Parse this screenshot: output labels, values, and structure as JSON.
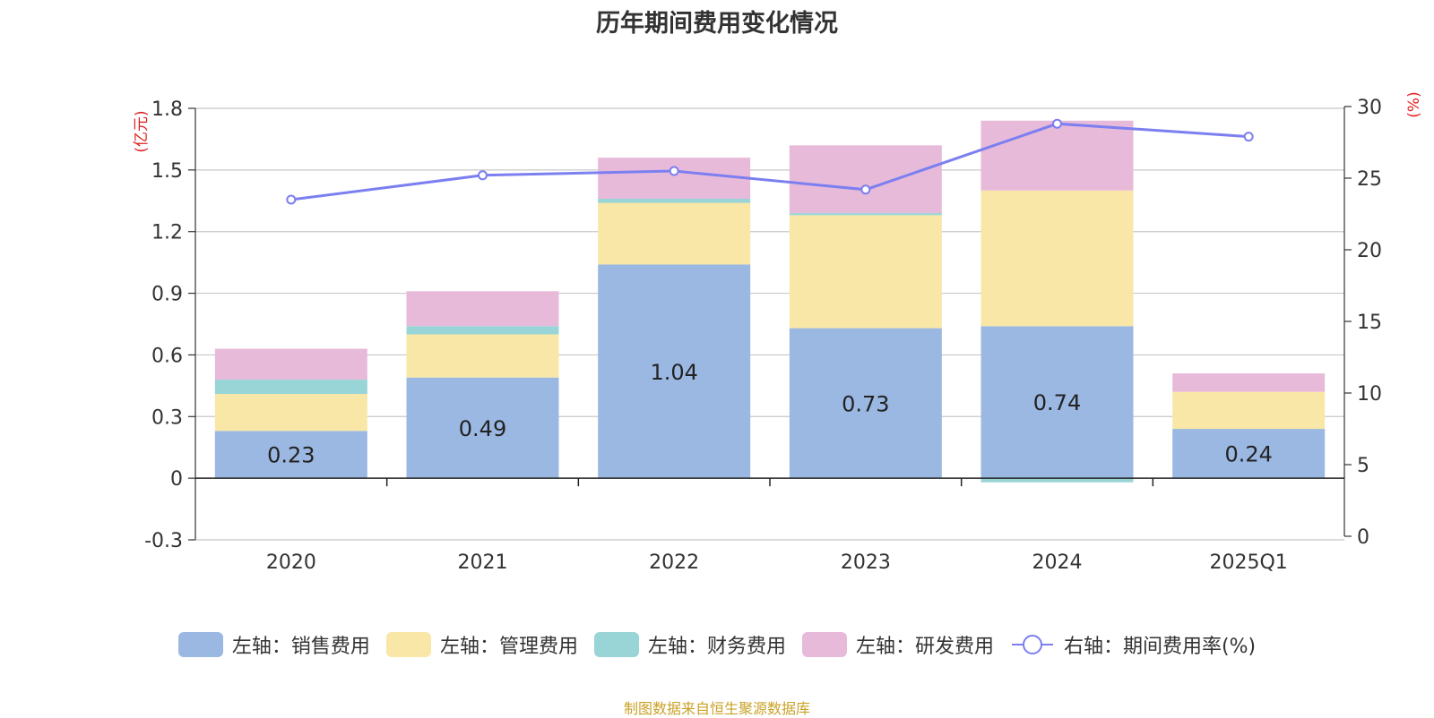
{
  "chart_data": {
    "type": "bar",
    "title": "历年期间费用变化情况",
    "categories": [
      "2020",
      "2021",
      "2022",
      "2023",
      "2024",
      "2025Q1"
    ],
    "left_axis": {
      "unit_label": "(亿元)",
      "ticks": [
        "1.8",
        "1.5",
        "1.2",
        "0.9",
        "0.6",
        "0.3",
        "0",
        "-0.3"
      ],
      "range": [
        -0.3,
        1.8
      ]
    },
    "right_axis": {
      "unit_label": "(%)",
      "ticks": [
        "30",
        "25",
        "20",
        "15",
        "10",
        "5",
        "0"
      ],
      "range": [
        0,
        30
      ]
    },
    "series": [
      {
        "name": "左轴：销售费用",
        "kind": "bar",
        "axis": "left",
        "color": "#9bb8e2",
        "values": [
          0.23,
          0.49,
          1.04,
          0.73,
          0.74,
          0.24
        ],
        "labels": [
          "0.23",
          "0.49",
          "1.04",
          "0.73",
          "0.74",
          "0.24"
        ]
      },
      {
        "name": "左轴：管理费用",
        "kind": "bar",
        "axis": "left",
        "color": "#f8e7a7",
        "values": [
          0.18,
          0.21,
          0.3,
          0.55,
          0.66,
          0.18
        ]
      },
      {
        "name": "左轴：财务费用",
        "kind": "bar",
        "axis": "left",
        "color": "#99d5d6",
        "values": [
          0.07,
          0.04,
          0.02,
          0.01,
          -0.02,
          0.0
        ]
      },
      {
        "name": "左轴：研发费用",
        "kind": "bar",
        "axis": "left",
        "color": "#e8bada",
        "values": [
          0.15,
          0.17,
          0.2,
          0.33,
          0.34,
          0.09
        ]
      },
      {
        "name": "右轴：期间费用率(%)",
        "kind": "line",
        "axis": "right",
        "color": "#7b7ff0",
        "values": [
          23.5,
          25.2,
          25.5,
          24.2,
          28.8,
          27.9
        ]
      }
    ],
    "grid": true,
    "legend_position": "bottom"
  },
  "source_note": "制图数据来自恒生聚源数据库"
}
